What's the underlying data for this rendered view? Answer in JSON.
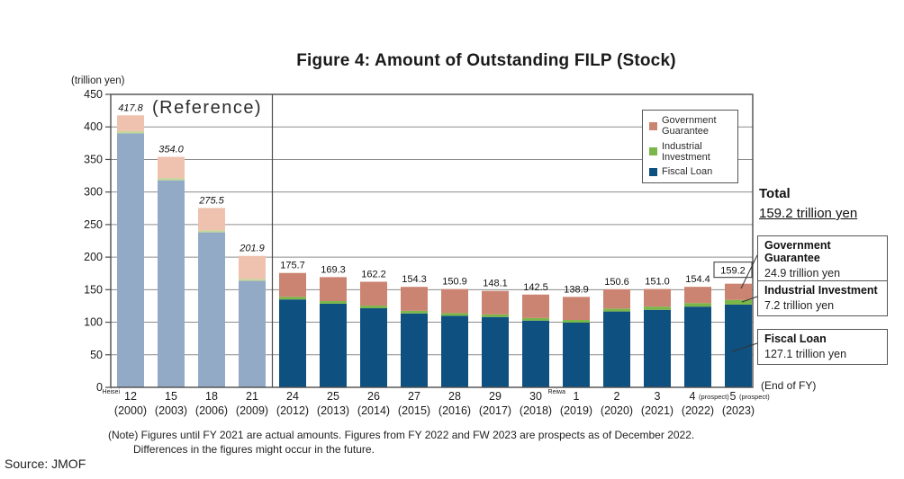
{
  "title": "Figure 4: Amount of Outstanding FILP (Stock)",
  "y_axis_unit": "(trillion yen)",
  "reference_label": "(Reference)",
  "end_of_fy_label": "(End of FY)",
  "total": {
    "title": "Total",
    "value": "159.2 trillion yen"
  },
  "legend": {
    "items": [
      {
        "line1": "Government",
        "line2": "Guarantee",
        "color_key": "government_guarantee"
      },
      {
        "line1": "Industrial",
        "line2": "Investment",
        "color_key": "industrial_investment"
      },
      {
        "line1": "Fiscal Loan",
        "line2": "",
        "color_key": "fiscal_loan"
      }
    ]
  },
  "callouts": [
    {
      "title": "Government Guarantee",
      "value": "24.9 trillion yen"
    },
    {
      "title": "Industrial Investment",
      "value": "7.2 trillion yen"
    },
    {
      "title": "Fiscal Loan",
      "value": "127.1 trillion yen"
    }
  ],
  "note": {
    "line1": "(Note) Figures until FY 2021 are actual amounts. Figures from FY 2022 and FW 2023 are prospects as of December 2022.",
    "line2": "Differences in the figures might occur in the future."
  },
  "source": "Source: JMOF",
  "colors": {
    "fiscal_loan": "#0e5181",
    "industrial_investment": "#7ab648",
    "government_guarantee": "#cc8472",
    "ref_fiscal_loan": "#93aac7",
    "ref_industrial_investment": "#c3d69b",
    "ref_government_guarantee": "#eec2ae",
    "grid": "#8c8c8c",
    "border": "#4d4d4d",
    "connector": "#333333"
  },
  "chart_data": {
    "type": "bar",
    "stacked": true,
    "title": "Figure 4: Amount of Outstanding FILP (Stock)",
    "ylabel": "(trillion yen)",
    "ylim": [
      0,
      450
    ],
    "ytick_interval": 50,
    "grid": true,
    "legend_position": "top-right",
    "legend_entries": [
      "Government Guarantee",
      "Industrial Investment",
      "Fiscal Loan"
    ],
    "categories": [
      {
        "era": "12",
        "year": "(2000)",
        "reference": true,
        "era_marker": "Heisei"
      },
      {
        "era": "15",
        "year": "(2003)",
        "reference": true
      },
      {
        "era": "18",
        "year": "(2006)",
        "reference": true
      },
      {
        "era": "21",
        "year": "(2009)",
        "reference": true
      },
      {
        "era": "24",
        "year": "(2012)"
      },
      {
        "era": "25",
        "year": "(2013)"
      },
      {
        "era": "26",
        "year": "(2014)"
      },
      {
        "era": "27",
        "year": "(2015)"
      },
      {
        "era": "28",
        "year": "(2016)"
      },
      {
        "era": "29",
        "year": "(2017)"
      },
      {
        "era": "30",
        "year": "(2018)"
      },
      {
        "era": "1",
        "year": "(2019)",
        "era_marker": "Reiwa"
      },
      {
        "era": "2",
        "year": "(2020)"
      },
      {
        "era": "3",
        "year": "(2021)"
      },
      {
        "era": "4",
        "year": "(2022)",
        "suffix": "(prospect)"
      },
      {
        "era": "5",
        "year": "(2023)",
        "suffix": "(prospect)"
      }
    ],
    "totals": [
      417.8,
      354.0,
      275.5,
      201.9,
      175.7,
      169.3,
      162.2,
      154.3,
      150.9,
      148.1,
      142.5,
      138.9,
      150.6,
      151.0,
      154.4,
      159.2
    ],
    "series": [
      {
        "name": "Fiscal Loan",
        "values": [
          390.0,
          318.0,
          238.0,
          163.5,
          135.0,
          128.5,
          121.5,
          113.5,
          110.0,
          108.0,
          102.5,
          99.5,
          116.5,
          119.0,
          124.0,
          127.1
        ]
      },
      {
        "name": "Industrial Investment",
        "values": [
          3.5,
          3.5,
          3.0,
          3.0,
          4.0,
          4.0,
          4.0,
          4.0,
          4.0,
          4.0,
          4.0,
          4.0,
          4.5,
          5.0,
          5.5,
          7.2
        ]
      },
      {
        "name": "Government Guarantee",
        "values": [
          24.3,
          32.5,
          34.5,
          35.4,
          36.7,
          36.8,
          36.7,
          36.8,
          36.9,
          36.1,
          36.0,
          35.4,
          29.6,
          27.0,
          24.9,
          24.9
        ]
      }
    ],
    "boxed_total_index": 15
  }
}
